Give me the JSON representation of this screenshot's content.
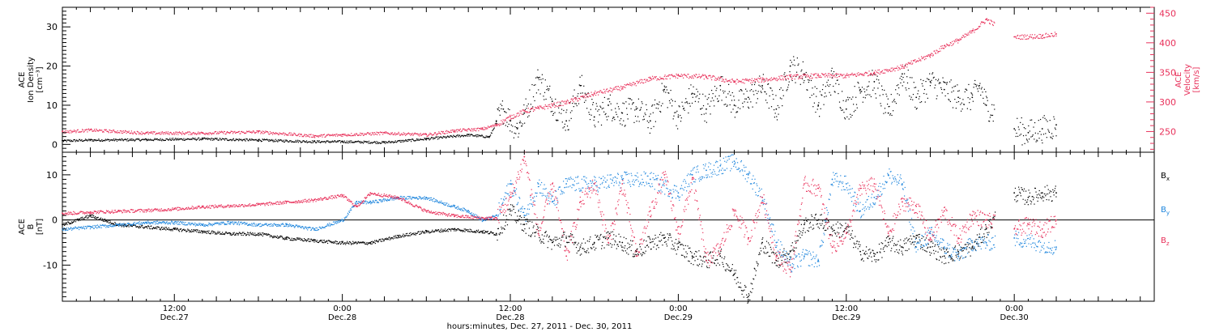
{
  "colors": {
    "black": "#000000",
    "pink": "#e8305a",
    "blue": "#1f86dd",
    "axis": "#000000"
  },
  "xaxis": {
    "title": "hours:minutes, Dec. 27, 2011 - Dec. 30, 2011",
    "ticks": [
      {
        "time_hours": 12,
        "time": "12:00",
        "date": "Dec.27"
      },
      {
        "time_hours": 24,
        "time": "0:00",
        "date": "Dec.28"
      },
      {
        "time_hours": 36,
        "time": "12:00",
        "date": "Dec.28"
      },
      {
        "time_hours": 48,
        "time": "0:00",
        "date": "Dec.29"
      },
      {
        "time_hours": 60,
        "time": "12:00",
        "date": "Dec.29"
      },
      {
        "time_hours": 72,
        "time": "0:00",
        "date": "Dec.30"
      }
    ],
    "range_hours": [
      4,
      82
    ]
  },
  "chart_data": [
    {
      "type": "scatter",
      "title": "",
      "left_axis": {
        "label_lines": [
          "ACE",
          "Ion Density",
          "[cm⁻³]"
        ],
        "ticks": [
          0,
          10,
          20,
          30
        ],
        "ylim": [
          -2,
          35
        ]
      },
      "right_axis": {
        "label_lines": [
          "ACE",
          "Velocity",
          "[km/s]"
        ],
        "ticks": [
          250,
          300,
          350,
          400,
          450
        ],
        "ylim": [
          215,
          460
        ]
      },
      "series": [
        {
          "color": "black",
          "axis": "left",
          "x": [
            4,
            6,
            10,
            14,
            18,
            22,
            24,
            27,
            30,
            33,
            34.5,
            35,
            35.5,
            36,
            36.5,
            37,
            38,
            39,
            40,
            41,
            42,
            43,
            44,
            45,
            46,
            47,
            48,
            49,
            50,
            51,
            52,
            53,
            54,
            55,
            56,
            57,
            58,
            59,
            60,
            61,
            62,
            63,
            64,
            65,
            66,
            67,
            68,
            69,
            69.5,
            70,
            72,
            73,
            74,
            75
          ],
          "y": [
            1,
            1.2,
            1.3,
            1.5,
            1.2,
            0.8,
            0.8,
            0.6,
            1.5,
            2.5,
            2,
            6,
            9,
            6,
            4,
            8,
            17,
            11,
            6,
            15,
            7,
            10,
            8,
            9,
            6,
            14,
            7,
            13,
            9,
            15,
            10,
            12,
            15,
            9,
            20,
            18,
            10,
            17,
            9,
            14,
            16,
            8,
            18,
            12,
            16,
            14,
            12,
            12,
            15,
            10,
            4,
            3,
            4,
            5
          ]
        },
        {
          "color": "pink",
          "axis": "right",
          "x": [
            4,
            6,
            10,
            14,
            18,
            22,
            24,
            27,
            30,
            32,
            34,
            35,
            36,
            37,
            38,
            39,
            40,
            42,
            44,
            46,
            48,
            50,
            52,
            54,
            56,
            58,
            60,
            62,
            64,
            66,
            67,
            68,
            69,
            70,
            72,
            74,
            75
          ],
          "y": [
            250,
            253,
            248,
            248,
            250,
            243,
            245,
            248,
            245,
            252,
            255,
            262,
            275,
            285,
            290,
            295,
            300,
            315,
            325,
            340,
            345,
            343,
            335,
            338,
            343,
            345,
            345,
            350,
            360,
            380,
            395,
            405,
            420,
            440,
            410,
            412,
            415
          ]
        }
      ]
    },
    {
      "type": "line",
      "title": "",
      "left_axis": {
        "label_lines": [
          "ACE",
          "B",
          "[nT]"
        ],
        "ticks": [
          -10,
          0,
          10
        ],
        "ylim": [
          -18,
          15
        ]
      },
      "legend": {
        "placement": "right",
        "entries": [
          {
            "label": "Bx",
            "base": "B",
            "sub": "x",
            "color": "black"
          },
          {
            "label": "By",
            "base": "B",
            "sub": "y",
            "color": "blue"
          },
          {
            "label": "Bz",
            "base": "B",
            "sub": "z",
            "color": "pink"
          }
        ]
      },
      "series": [
        {
          "name": "Bx",
          "color": "black",
          "x": [
            4,
            6,
            8,
            10,
            12,
            14,
            16,
            18,
            20,
            22,
            24,
            26,
            28,
            30,
            32,
            34,
            35,
            36,
            37,
            38,
            39,
            40,
            41,
            42,
            43,
            44,
            45,
            46,
            47,
            48,
            49,
            50,
            51,
            52,
            53,
            54,
            55,
            56,
            57,
            58,
            59,
            60,
            61,
            62,
            63,
            64,
            65,
            66,
            67,
            68,
            69,
            70,
            72,
            73,
            74,
            75
          ],
          "y": [
            -1,
            1,
            -1,
            -1.5,
            -2,
            -2.5,
            -3,
            -3,
            -4,
            -4.5,
            -5,
            -5,
            -3.5,
            -2.5,
            -2,
            -2.5,
            -3,
            2,
            -1,
            -3,
            -5,
            -4,
            -6,
            -5,
            -4,
            -5,
            -7,
            -5,
            -4,
            -6,
            -8,
            -9,
            -8,
            -12,
            -17,
            -5,
            -9,
            -7,
            -1,
            0,
            -2,
            -2,
            -7,
            -8,
            -5,
            -6,
            -4,
            -6,
            -8,
            -7,
            -6,
            -2,
            6,
            5,
            6,
            6
          ]
        },
        {
          "name": "By",
          "color": "blue",
          "x": [
            4,
            6,
            8,
            10,
            12,
            14,
            16,
            18,
            20,
            22,
            24,
            25,
            26,
            28,
            30,
            32,
            33,
            34,
            35,
            36,
            37,
            38,
            39,
            40,
            42,
            44,
            46,
            48,
            49,
            50,
            51,
            52,
            53,
            54,
            55,
            56,
            57,
            58,
            59,
            60,
            61,
            62,
            63,
            64,
            65,
            66,
            67,
            68,
            69,
            70,
            72,
            75
          ],
          "y": [
            -2,
            -1.5,
            -1,
            -0.5,
            -0.5,
            -1,
            -0.5,
            -1,
            -1,
            -2,
            0,
            4,
            4,
            5,
            5,
            3,
            2,
            0,
            1,
            8,
            1,
            8,
            4,
            8,
            8,
            9,
            9,
            6,
            10,
            11,
            12,
            13,
            10,
            5,
            -5,
            -10,
            -8,
            -9,
            9,
            8,
            2,
            5,
            10,
            8,
            -6,
            -3,
            -6,
            -8,
            -5,
            -5,
            -4,
            -6
          ]
        },
        {
          "name": "Bz",
          "color": "pink",
          "x": [
            4,
            6,
            8,
            10,
            12,
            14,
            16,
            18,
            20,
            22,
            24,
            25,
            26,
            28,
            30,
            32,
            34,
            35,
            36,
            37,
            38,
            39,
            40,
            41,
            42,
            43,
            44,
            45,
            46,
            47,
            48,
            49,
            50,
            51,
            52,
            53,
            54,
            55,
            56,
            57,
            58,
            59,
            60,
            61,
            62,
            63,
            64,
            65,
            66,
            67,
            68,
            69,
            70,
            72,
            73,
            74,
            75
          ],
          "y": [
            1.5,
            1.8,
            2,
            2.2,
            2.5,
            3,
            3.2,
            3.5,
            4,
            4.5,
            5.5,
            3,
            6,
            5,
            2,
            1,
            0.5,
            0.5,
            5,
            14,
            -3,
            8,
            -8,
            4,
            8,
            -5,
            8,
            -8,
            2,
            10,
            -3,
            9,
            -9,
            -6,
            2,
            -4,
            5,
            -8,
            -11,
            8,
            7,
            -6,
            -3,
            7,
            8,
            -3,
            4,
            3,
            -4,
            2,
            -4,
            1,
            0,
            -2,
            -1,
            -2,
            0
          ]
        }
      ]
    }
  ]
}
